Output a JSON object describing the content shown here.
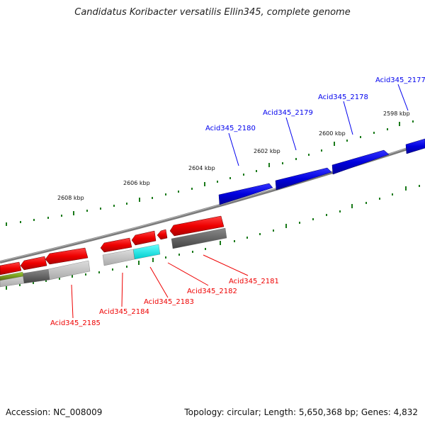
{
  "header": {
    "title": "Candidatus Koribacter versatilis Ellin345, complete genome"
  },
  "footer": {
    "accession": "Accession: NC_008009",
    "summary": "Topology: circular; Length: 5,650,368 bp; Genes: 4,832"
  },
  "scale_labels": [
    "2598 kbp",
    "2600 kbp",
    "2602 kbp",
    "2604 kbp",
    "2606 kbp",
    "2608 kbp"
  ],
  "genes_forward": [
    "Acid345_2177",
    "Acid345_2178",
    "Acid345_2179",
    "Acid345_2180"
  ],
  "genes_reverse": [
    "Acid345_2181",
    "Acid345_2182",
    "Acid345_2183",
    "Acid345_2184",
    "Acid345_2185"
  ],
  "colors": {
    "forward_gene": "#0000ee",
    "reverse_gene": "#ee0000",
    "tick": "#1a7a1a",
    "backbone": "#888888"
  }
}
